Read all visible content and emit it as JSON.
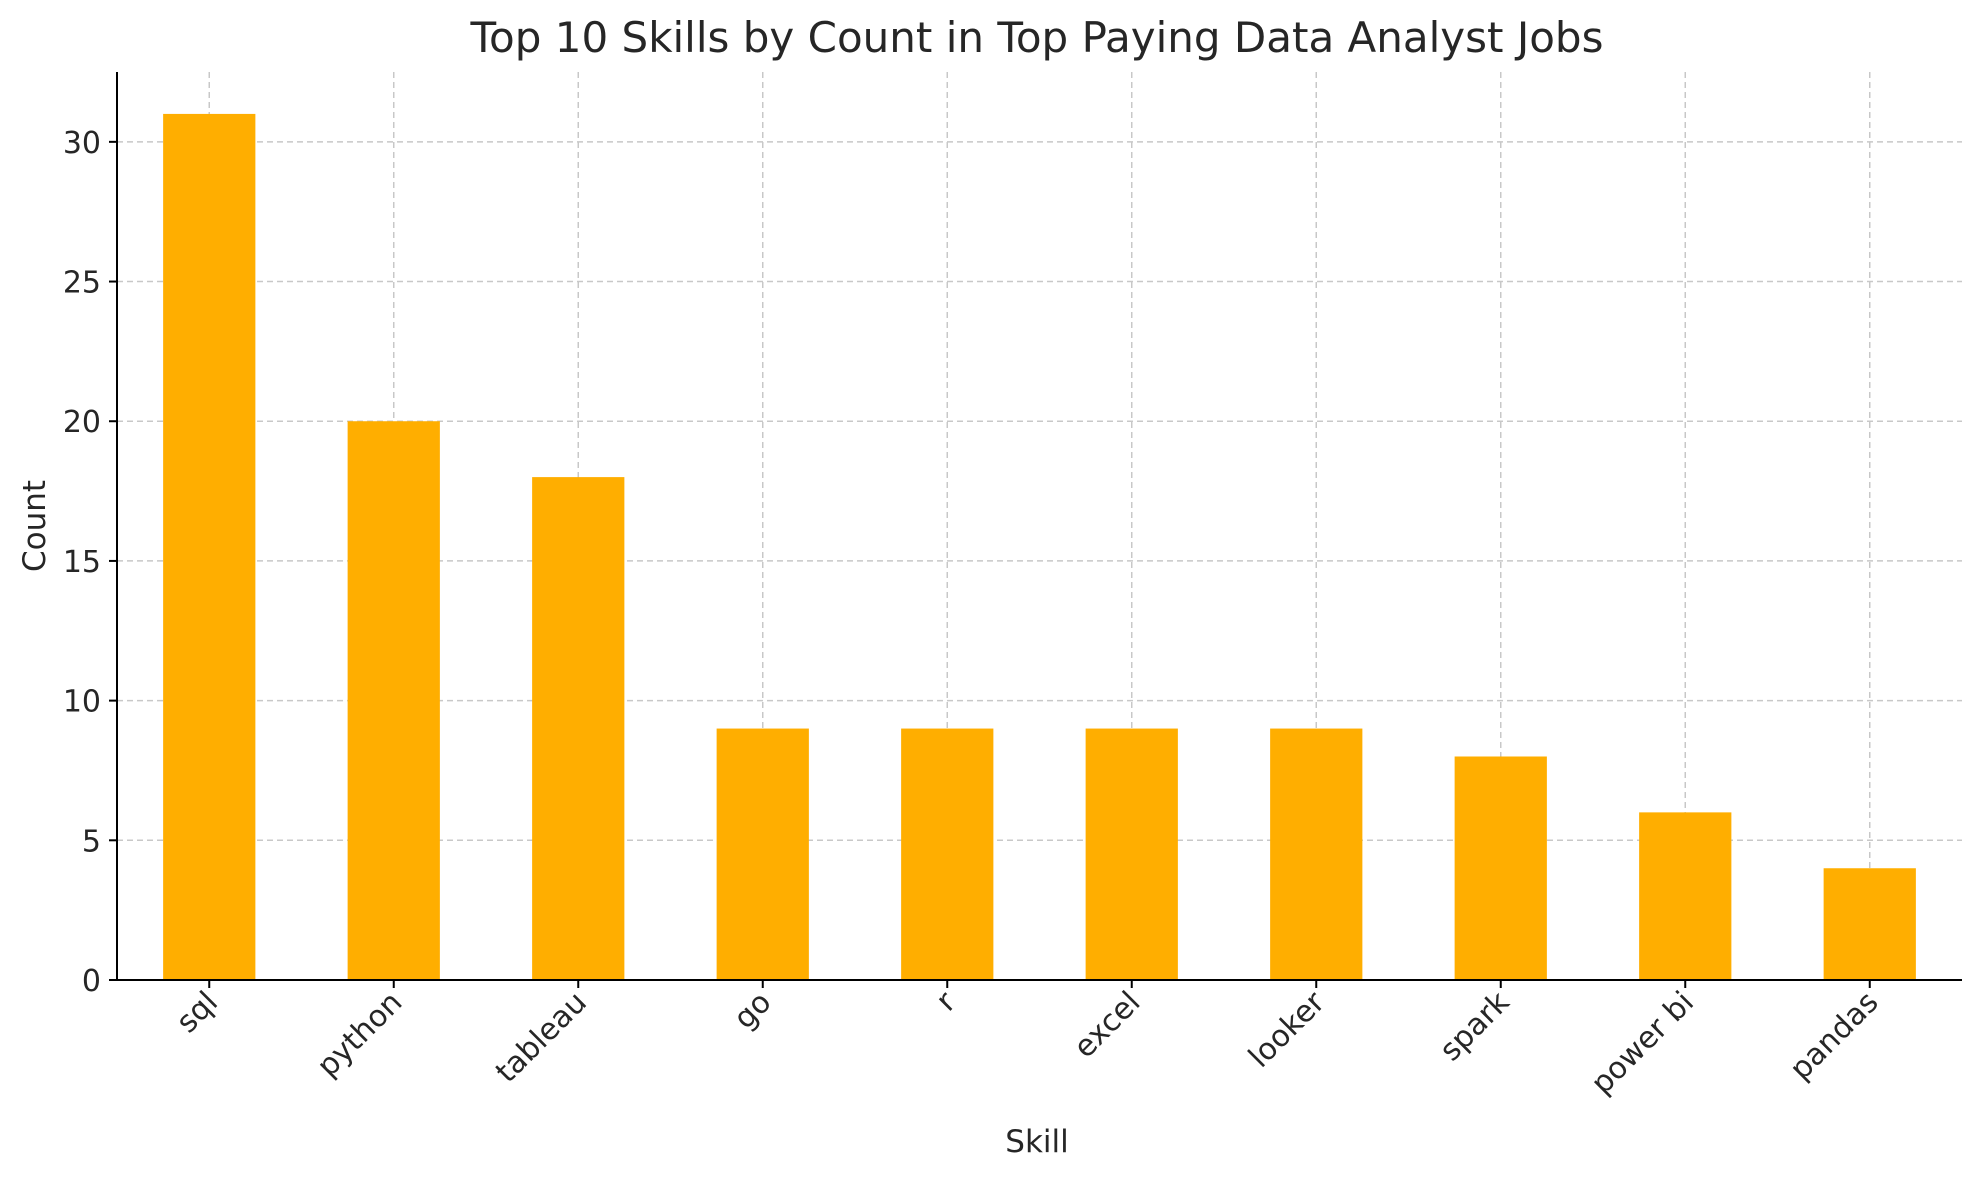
{
  "chart_data": {
    "type": "bar",
    "title": "Top 10 Skills by Count in Top Paying Data Analyst Jobs",
    "xlabel": "Skill",
    "ylabel": "Count",
    "categories": [
      "sql",
      "python",
      "tableau",
      "go",
      "r",
      "excel",
      "looker",
      "spark",
      "power bi",
      "pandas"
    ],
    "values": [
      31,
      20,
      18,
      9,
      9,
      9,
      9,
      8,
      6,
      4
    ],
    "ylim": [
      0,
      32.5
    ],
    "yticks": [
      "0",
      "5",
      "10",
      "15",
      "20",
      "25",
      "30"
    ],
    "grid": true,
    "bar_color": "#ffae00",
    "grid_color": "#c8c8c8",
    "axis_color": "#000000"
  }
}
